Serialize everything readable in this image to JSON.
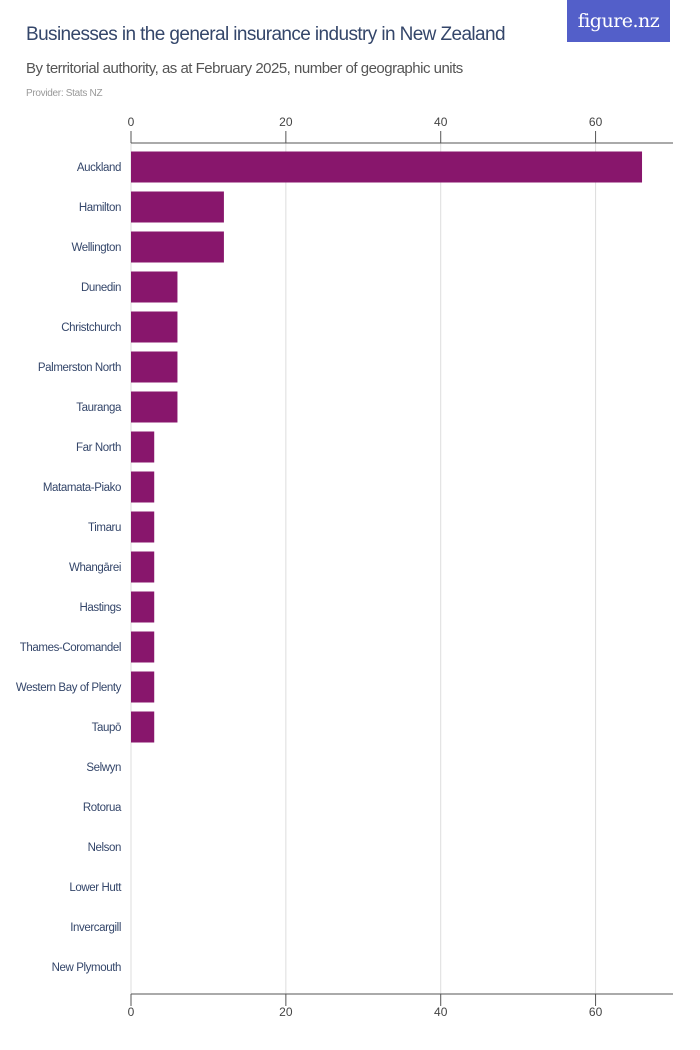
{
  "header": {
    "title": "Businesses in the general insurance industry in New Zealand",
    "subtitle": "By territorial authority, as at February 2025, number of geographic units",
    "provider": "Provider: Stats NZ",
    "logo": "figure.nz"
  },
  "chart_data": {
    "type": "bar",
    "orientation": "horizontal",
    "categories": [
      "Auckland",
      "Hamilton",
      "Wellington",
      "Dunedin",
      "Christchurch",
      "Palmerston North",
      "Tauranga",
      "Far North",
      "Matamata-Piako",
      "Timaru",
      "Whangārei",
      "Hastings",
      "Thames-Coromandel",
      "Western Bay of Plenty",
      "Taupō",
      "Selwyn",
      "Rotorua",
      "Nelson",
      "Lower Hutt",
      "Invercargill",
      "New Plymouth"
    ],
    "values": [
      66,
      12,
      12,
      6,
      6,
      6,
      6,
      3,
      3,
      3,
      3,
      3,
      3,
      3,
      3,
      0,
      0,
      0,
      0,
      0,
      0
    ],
    "xlim": [
      0,
      70
    ],
    "xticks": [
      0,
      20,
      40,
      60
    ],
    "xtick_labels": [
      "0",
      "20",
      "40",
      "60"
    ],
    "axis_position": "top and bottom",
    "grid": true,
    "bar_color": "#88166c",
    "title": "Businesses in the general insurance industry in New Zealand"
  }
}
